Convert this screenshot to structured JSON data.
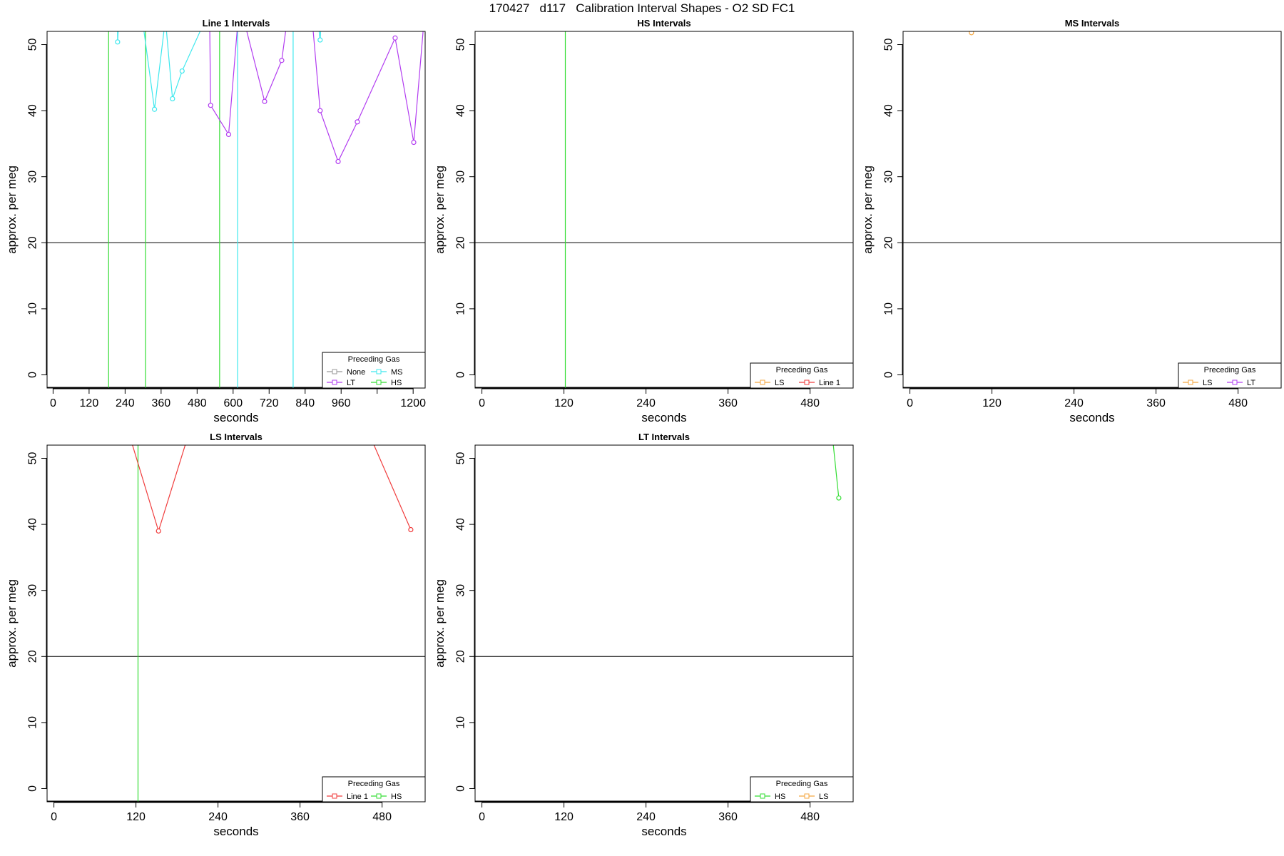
{
  "title": "170427   d117   Calibration Interval Shapes - O2 SD FC1",
  "colors": {
    "None": "#999999",
    "LT": "#b23cf0",
    "MS": "#3ee8ee",
    "HS": "#33dd33",
    "LS": "#f4a742",
    "Line 1": "#f03c3c",
    "reference_line": "#000000",
    "vertical_marker": "#2a9a2a"
  },
  "chart_data": [
    {
      "type": "line",
      "title": "Line 1 Intervals",
      "xlabel": "seconds",
      "ylabel": "approx. per meg",
      "xlim": [
        -20,
        1240
      ],
      "ylim": [
        -2,
        52
      ],
      "xticks": [
        0,
        120,
        240,
        360,
        480,
        600,
        720,
        840,
        960,
        1080,
        1200
      ],
      "xtick_labels": [
        "0",
        "120",
        "240",
        "360",
        "480",
        "600",
        "720",
        "840",
        "960",
        "",
        "1200"
      ],
      "yticks": [
        0,
        10,
        20,
        30,
        40,
        50
      ],
      "hlines": [
        20
      ],
      "vlines": [
        {
          "x": 185,
          "color": "HS"
        },
        {
          "x": 308,
          "color": "HS"
        },
        {
          "x": 555,
          "color": "HS"
        },
        {
          "x": 615,
          "color": "MS"
        },
        {
          "x": 800,
          "color": "MS"
        }
      ],
      "legend": {
        "title": "Preceding Gas",
        "position": "bottom-right",
        "columns": 2,
        "entries": [
          "None",
          "MS",
          "LT",
          "HS"
        ]
      },
      "series": [
        {
          "name": "MS",
          "points": [
            [
              215,
              53
            ],
            [
              215,
              50.4
            ],
            [
              218,
              53
            ],
            [
              300,
              53
            ],
            [
              338,
              40.2
            ],
            [
              372,
              53
            ],
            [
              376,
              53
            ],
            [
              398,
              41.8
            ],
            [
              430,
              46
            ],
            [
              500,
              53
            ],
            [
              884,
              53
            ],
            [
              890,
              50.7
            ],
            [
              893,
              53
            ]
          ]
        },
        {
          "name": "LT",
          "points": [
            [
              522,
              53
            ],
            [
              525,
              40.8
            ],
            [
              585,
              36.4
            ],
            [
              615,
              53
            ],
            [
              640,
              53
            ],
            [
              705,
              41.4
            ],
            [
              762,
              47.6
            ],
            [
              778,
              53
            ],
            [
              865,
              53
            ],
            [
              890,
              40
            ],
            [
              950,
              32.3
            ],
            [
              1014,
              38.3
            ],
            [
              1140,
              51
            ],
            [
              1202,
              35.2
            ],
            [
              1235,
              53
            ]
          ]
        }
      ]
    },
    {
      "type": "line",
      "title": "HS Intervals",
      "xlabel": "seconds",
      "ylabel": "approx. per meg",
      "xlim": [
        -10,
        543
      ],
      "ylim": [
        -2,
        52
      ],
      "xticks": [
        0,
        120,
        240,
        360,
        480
      ],
      "xtick_labels": [
        "0",
        "120",
        "240",
        "360",
        "480"
      ],
      "yticks": [
        0,
        10,
        20,
        30,
        40,
        50
      ],
      "hlines": [
        20
      ],
      "vlines": [
        {
          "x": 122,
          "color": "HS"
        }
      ],
      "legend": {
        "title": "Preceding Gas",
        "position": "bottom-right",
        "columns": 2,
        "entries": [
          "LS",
          "Line 1"
        ]
      },
      "series": []
    },
    {
      "type": "line",
      "title": "MS Intervals",
      "xlabel": "seconds",
      "ylabel": "approx. per meg",
      "xlim": [
        -10,
        543
      ],
      "ylim": [
        -2,
        52
      ],
      "xticks": [
        0,
        120,
        240,
        360,
        480
      ],
      "xtick_labels": [
        "0",
        "120",
        "240",
        "360",
        "480"
      ],
      "yticks": [
        0,
        10,
        20,
        30,
        40,
        50
      ],
      "hlines": [
        20
      ],
      "vlines": [],
      "legend": {
        "title": "Preceding Gas",
        "position": "bottom-right",
        "columns": 2,
        "entries": [
          "LS",
          "LT"
        ]
      },
      "series": [
        {
          "name": "LS",
          "points": [
            [
              90,
              51.8
            ]
          ]
        }
      ]
    },
    {
      "type": "line",
      "title": "LS Intervals",
      "xlabel": "seconds",
      "ylabel": "approx. per meg",
      "xlim": [
        -10,
        543
      ],
      "ylim": [
        -2,
        52
      ],
      "xticks": [
        0,
        120,
        240,
        360,
        480
      ],
      "xtick_labels": [
        "0",
        "120",
        "240",
        "360",
        "480"
      ],
      "yticks": [
        0,
        10,
        20,
        30,
        40,
        50
      ],
      "hlines": [
        20
      ],
      "vlines": [
        {
          "x": 123,
          "color": "HS"
        }
      ],
      "legend": {
        "title": "Preceding Gas",
        "position": "bottom-right",
        "columns": 2,
        "entries": [
          "Line 1",
          "HS"
        ]
      },
      "series": [
        {
          "name": "Line 1",
          "points": [
            [
              112,
              53
            ],
            [
              153,
              39
            ],
            [
              195,
              53
            ],
            [
              464,
              53
            ],
            [
              522,
              39.2
            ]
          ]
        }
      ]
    },
    {
      "type": "line",
      "title": "LT Intervals",
      "xlabel": "seconds",
      "ylabel": "approx. per meg",
      "xlim": [
        -10,
        543
      ],
      "ylim": [
        -2,
        52
      ],
      "xticks": [
        0,
        120,
        240,
        360,
        480
      ],
      "xtick_labels": [
        "0",
        "120",
        "240",
        "360",
        "480"
      ],
      "yticks": [
        0,
        10,
        20,
        30,
        40,
        50
      ],
      "hlines": [
        20
      ],
      "vlines": [],
      "legend": {
        "title": "Preceding Gas",
        "position": "bottom-right",
        "columns": 2,
        "entries": [
          "HS",
          "LS"
        ]
      },
      "series": [
        {
          "name": "HS",
          "points": [
            [
              513,
              53
            ],
            [
              522,
              44
            ]
          ]
        }
      ]
    }
  ]
}
